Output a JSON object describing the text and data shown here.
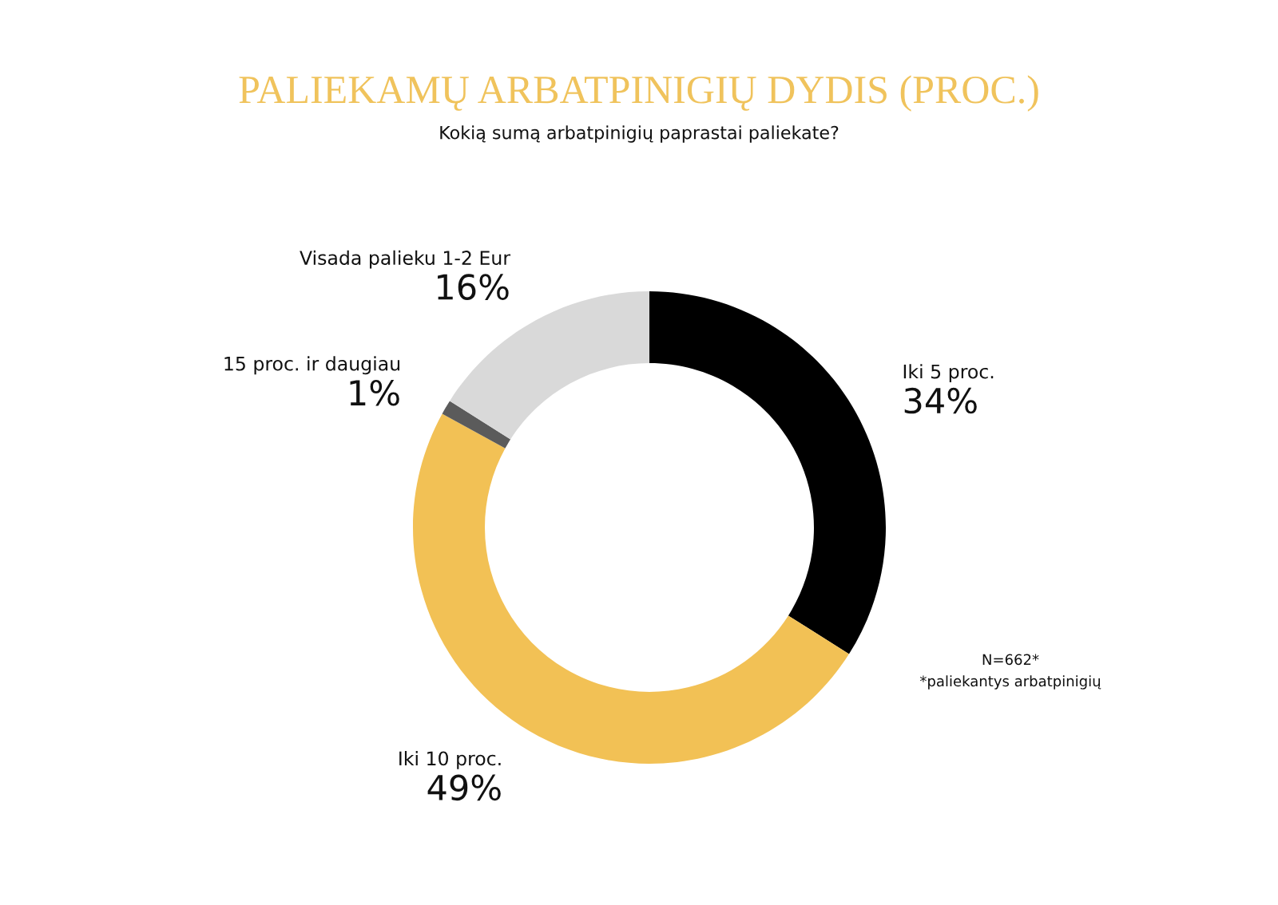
{
  "chart_data": {
    "type": "donut",
    "title": "PALIEKAMŲ ARBATPINIGIŲ DYDIS (PROC.)",
    "subtitle": "Kokią sumą arbatpinigių paprastai paliekate?",
    "categories": [
      "Iki 5 proc.",
      "Iki 10 proc.",
      "15 proc. ir daugiau",
      "Visada palieku 1-2 Eur"
    ],
    "values": [
      34,
      49,
      1,
      16
    ],
    "value_labels": [
      "34%",
      "49%",
      "1%",
      "16%"
    ],
    "colors": [
      "#000000",
      "#f2c155",
      "#5b5b5b",
      "#d9d9d9"
    ],
    "annotations": [
      "N=662*",
      "*paliekantys arbatpinigių"
    ],
    "legend": false
  }
}
